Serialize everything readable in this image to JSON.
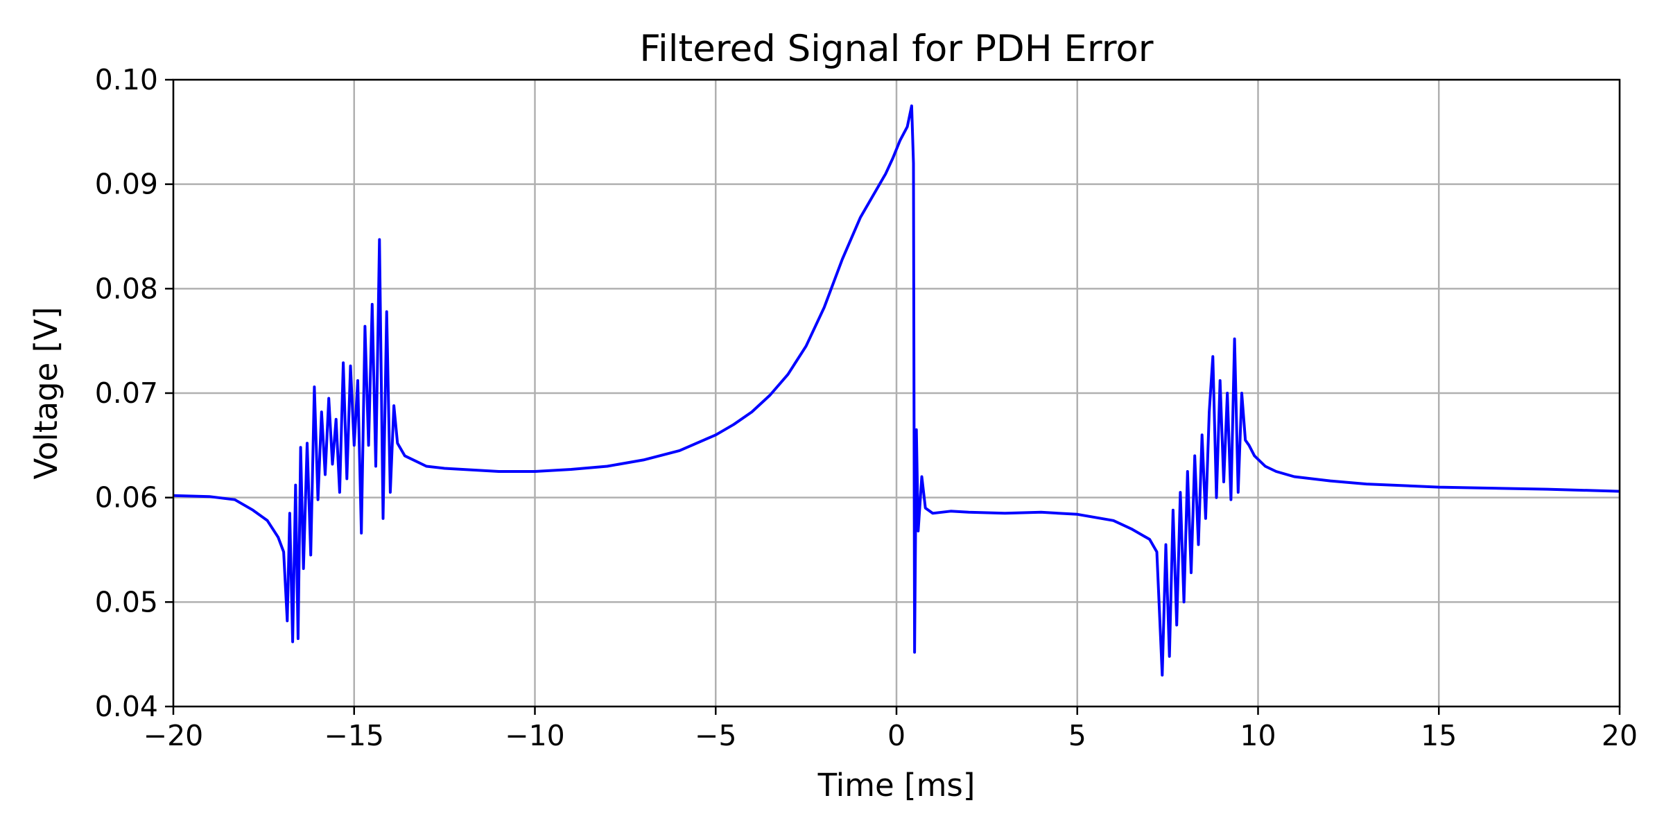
{
  "chart_data": {
    "type": "line",
    "title": "Filtered Signal for PDH Error",
    "xlabel": "Time [ms]",
    "ylabel": "Voltage [V]",
    "xlim": [
      -20,
      20
    ],
    "ylim": [
      0.04,
      0.1
    ],
    "x_ticks": [
      -20,
      -15,
      -10,
      -5,
      0,
      5,
      10,
      15,
      20
    ],
    "x_tick_labels": [
      "−20",
      "−15",
      "−10",
      "−5",
      "0",
      "5",
      "10",
      "15",
      "20"
    ],
    "y_ticks": [
      0.04,
      0.05,
      0.06,
      0.07,
      0.08,
      0.09,
      0.1
    ],
    "y_tick_labels": [
      "0.04",
      "0.05",
      "0.06",
      "0.07",
      "0.08",
      "0.09",
      "0.10"
    ],
    "grid": true,
    "legend": "none",
    "series": [
      {
        "color": "#0000ff",
        "x": [
          -20,
          -19,
          -18.3,
          -17.8,
          -17.4,
          -17.1,
          -16.95,
          -16.85,
          -16.78,
          -16.7,
          -16.62,
          -16.55,
          -16.48,
          -16.4,
          -16.3,
          -16.2,
          -16.1,
          -16.0,
          -15.9,
          -15.8,
          -15.7,
          -15.6,
          -15.5,
          -15.4,
          -15.3,
          -15.2,
          -15.1,
          -15.0,
          -14.9,
          -14.8,
          -14.7,
          -14.6,
          -14.5,
          -14.4,
          -14.3,
          -14.2,
          -14.1,
          -14.0,
          -13.9,
          -13.8,
          -13.6,
          -13.3,
          -13.0,
          -12.5,
          -12.0,
          -11.0,
          -10.0,
          -9.0,
          -8.0,
          -7.0,
          -6.0,
          -5.0,
          -4.5,
          -4.0,
          -3.5,
          -3.0,
          -2.5,
          -2.0,
          -1.5,
          -1.0,
          -0.5,
          -0.3,
          -0.1,
          0.1,
          0.3,
          0.42,
          0.47,
          0.5,
          0.55,
          0.6,
          0.7,
          0.8,
          1.0,
          1.5,
          2.0,
          3.0,
          4.0,
          5.0,
          6.0,
          6.5,
          7.0,
          7.2,
          7.35,
          7.45,
          7.55,
          7.65,
          7.75,
          7.85,
          7.95,
          8.05,
          8.15,
          8.25,
          8.35,
          8.45,
          8.55,
          8.65,
          8.75,
          8.85,
          8.95,
          9.05,
          9.15,
          9.25,
          9.35,
          9.45,
          9.55,
          9.65,
          9.75,
          9.9,
          10.2,
          10.5,
          11.0,
          12.0,
          13.0,
          15.0,
          18.0,
          20.0
        ],
        "y": [
          0.0602,
          0.0601,
          0.0598,
          0.0588,
          0.0578,
          0.0562,
          0.0548,
          0.0482,
          0.0585,
          0.0462,
          0.0612,
          0.0465,
          0.0648,
          0.0532,
          0.0652,
          0.0545,
          0.0706,
          0.0598,
          0.0682,
          0.0622,
          0.0695,
          0.0632,
          0.0675,
          0.0605,
          0.0729,
          0.0618,
          0.0726,
          0.065,
          0.0712,
          0.0566,
          0.0764,
          0.065,
          0.0785,
          0.063,
          0.0847,
          0.058,
          0.0778,
          0.0605,
          0.0688,
          0.0652,
          0.064,
          0.0635,
          0.063,
          0.0628,
          0.0627,
          0.0625,
          0.0625,
          0.0627,
          0.063,
          0.0636,
          0.0645,
          0.066,
          0.067,
          0.0682,
          0.0698,
          0.0718,
          0.0745,
          0.0782,
          0.0828,
          0.0868,
          0.0898,
          0.091,
          0.0925,
          0.0942,
          0.0955,
          0.0975,
          0.092,
          0.0452,
          0.0665,
          0.0568,
          0.062,
          0.059,
          0.0585,
          0.0587,
          0.0586,
          0.0585,
          0.0586,
          0.0584,
          0.0578,
          0.057,
          0.056,
          0.0548,
          0.043,
          0.0555,
          0.0448,
          0.0588,
          0.0478,
          0.0605,
          0.05,
          0.0625,
          0.0528,
          0.064,
          0.0555,
          0.066,
          0.058,
          0.0682,
          0.0735,
          0.06,
          0.0712,
          0.0615,
          0.07,
          0.0598,
          0.0752,
          0.0605,
          0.07,
          0.0655,
          0.065,
          0.064,
          0.063,
          0.0625,
          0.062,
          0.0616,
          0.0613,
          0.061,
          0.0608,
          0.0606
        ]
      }
    ]
  }
}
